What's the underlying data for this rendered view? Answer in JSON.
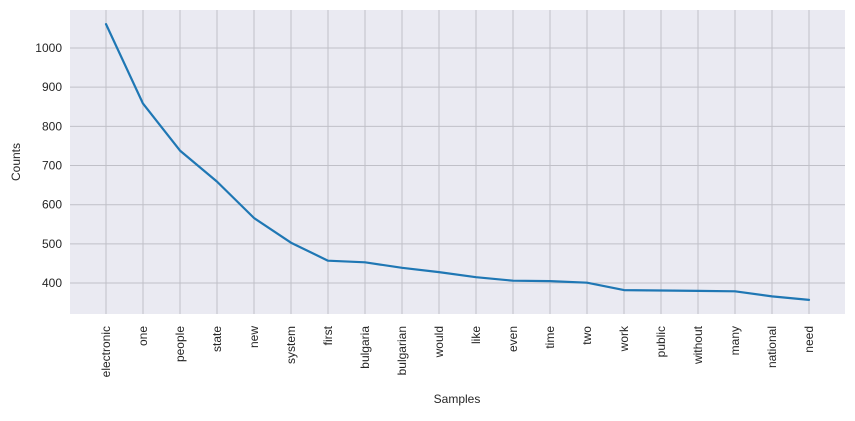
{
  "chart_data": {
    "type": "line",
    "xlabel": "Samples",
    "ylabel": "Counts",
    "categories": [
      "electronic",
      "one",
      "people",
      "state",
      "new",
      "system",
      "first",
      "bulgaria",
      "bulgarian",
      "would",
      "like",
      "even",
      "time",
      "two",
      "work",
      "public",
      "without",
      "many",
      "national",
      "need"
    ],
    "values": [
      1061,
      858,
      738,
      659,
      566,
      503,
      457,
      453,
      439,
      428,
      415,
      406,
      405,
      401,
      382,
      381,
      380,
      379,
      366,
      357
    ],
    "yticks": [
      400,
      500,
      600,
      700,
      800,
      900,
      1000
    ],
    "ylim": [
      321,
      1097
    ],
    "grid": true,
    "line_color": "#1f77b4",
    "plot_background": "#eaeaf2",
    "grid_color": "#c0c0c8"
  }
}
